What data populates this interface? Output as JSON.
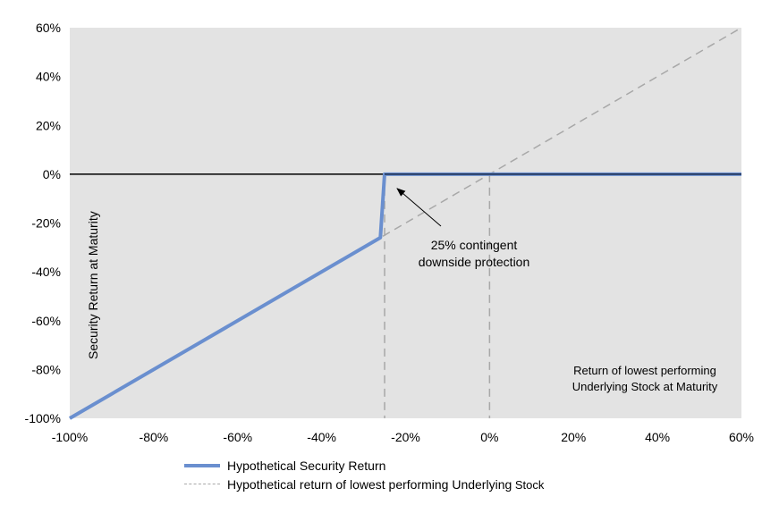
{
  "chart_data": {
    "type": "line",
    "xlabel": "Return of lowest performing Underlying Stock at Maturity",
    "ylabel": "Security Return at Maturity",
    "xlim": [
      -100,
      60
    ],
    "ylim": [
      -100,
      60
    ],
    "x_ticks": [
      "-100%",
      "-80%",
      "-60%",
      "-40%",
      "-20%",
      "0%",
      "20%",
      "40%",
      "60%"
    ],
    "y_ticks": [
      "60%",
      "40%",
      "20%",
      "0%",
      "-20%",
      "-40%",
      "-60%",
      "-80%",
      "-100%"
    ],
    "grid": false,
    "background_color": "#e3e3e3",
    "legend_position": "bottom",
    "series": [
      {
        "name": "Hypothetical Security Return",
        "style": "solid",
        "color": "#6a8fcf",
        "x": [
          -100,
          -26,
          -25,
          60
        ],
        "y": [
          -100,
          -26,
          0,
          0
        ]
      },
      {
        "name": "Hypothetical return of lowest performing Underlying Stock",
        "style": "dashed",
        "color": "#a8a8a8",
        "x": [
          -100,
          60
        ],
        "y": [
          -100,
          60
        ]
      }
    ],
    "annotations": {
      "protection_line1": "25% contingent",
      "protection_line2": "downside protection",
      "arrow_target": {
        "x": -25,
        "y": 0
      },
      "xlabel_line1": "Return of lowest performing",
      "xlabel_line2": "Underlying Stock at Maturity",
      "ref_vlines": [
        -25,
        0
      ]
    },
    "legend": {
      "item1": "Hypothetical Security Return",
      "item2_main": "Hypothetical return of lowest performing Underlying",
      "item2_tail": " Stock"
    }
  }
}
